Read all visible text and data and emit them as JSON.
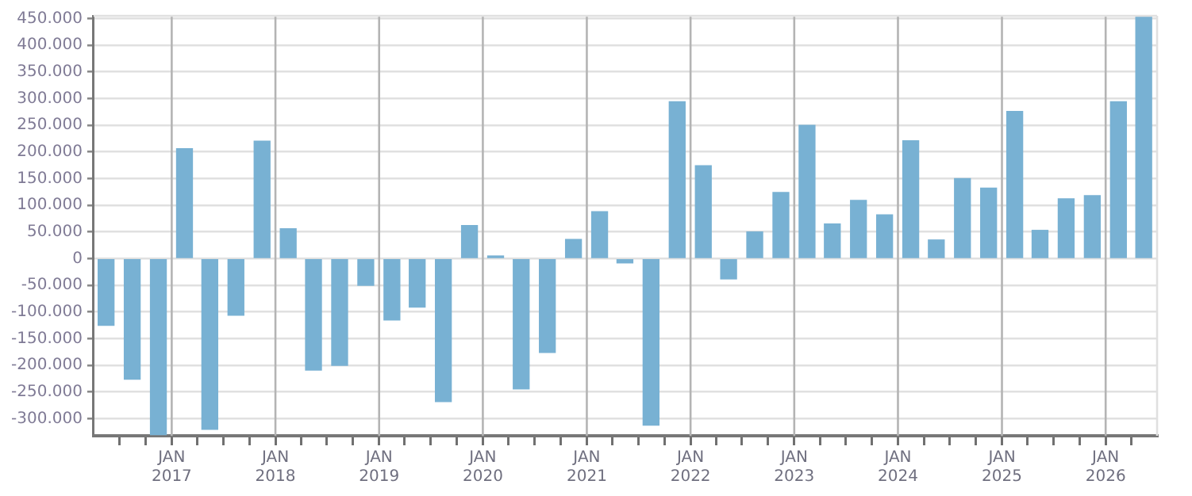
{
  "chart_data": {
    "type": "bar",
    "color": "#78b1d3",
    "grid": true,
    "x": [
      "2016-05-15",
      "2016-08-15",
      "2016-11-15",
      "2017-02-15",
      "2017-05-15",
      "2017-08-15",
      "2017-11-15",
      "2018-02-15",
      "2018-05-15",
      "2018-08-15",
      "2018-11-15",
      "2019-02-15",
      "2019-05-15",
      "2019-08-15",
      "2019-11-15",
      "2020-02-15",
      "2020-05-15",
      "2020-08-15",
      "2020-11-15",
      "2021-02-15",
      "2021-05-15",
      "2021-08-15",
      "2021-11-15",
      "2022-02-15",
      "2022-05-15",
      "2022-08-15",
      "2022-11-15",
      "2023-02-15",
      "2023-05-15",
      "2023-08-15",
      "2023-11-15",
      "2024-02-15",
      "2024-05-15",
      "2024-08-15",
      "2024-11-15",
      "2025-02-15",
      "2025-05-15",
      "2025-08-15",
      "2025-11-15",
      "2026-02-15",
      "2026-05-15"
    ],
    "values": [
      -125000,
      -226000,
      -330000,
      206000,
      -320000,
      -106000,
      220000,
      56000,
      -209000,
      -200000,
      -50000,
      -115000,
      -91000,
      -268000,
      62000,
      5000,
      -244000,
      -176000,
      36000,
      88000,
      -8000,
      -312000,
      294000,
      174000,
      -38000,
      50000,
      124000,
      250000,
      65000,
      109000,
      82000,
      221000,
      35000,
      150000,
      132000,
      276000,
      53000,
      112000,
      118000,
      294000,
      453000
    ],
    "xlim": [
      "2016-04",
      "2026-07"
    ],
    "xticks": [
      {
        "value": "2016-07",
        "label": null
      },
      {
        "value": "2016-10",
        "label": null
      },
      {
        "value": "2017-01",
        "label": "JAN 2017"
      },
      {
        "value": "2017-04",
        "label": null
      },
      {
        "value": "2017-07",
        "label": null
      },
      {
        "value": "2017-10",
        "label": null
      },
      {
        "value": "2018-01",
        "label": "JAN 2018"
      },
      {
        "value": "2018-04",
        "label": null
      },
      {
        "value": "2018-07",
        "label": null
      },
      {
        "value": "2018-10",
        "label": null
      },
      {
        "value": "2019-01",
        "label": "JAN 2019"
      },
      {
        "value": "2019-04",
        "label": null
      },
      {
        "value": "2019-07",
        "label": null
      },
      {
        "value": "2019-10",
        "label": null
      },
      {
        "value": "2020-01",
        "label": "JAN 2020"
      },
      {
        "value": "2020-04",
        "label": null
      },
      {
        "value": "2020-07",
        "label": null
      },
      {
        "value": "2020-10",
        "label": null
      },
      {
        "value": "2021-01",
        "label": "JAN 2021"
      },
      {
        "value": "2021-04",
        "label": null
      },
      {
        "value": "2021-07",
        "label": null
      },
      {
        "value": "2021-10",
        "label": null
      },
      {
        "value": "2022-01",
        "label": "JAN 2022"
      },
      {
        "value": "2022-04",
        "label": null
      },
      {
        "value": "2022-07",
        "label": null
      },
      {
        "value": "2022-10",
        "label": null
      },
      {
        "value": "2023-01",
        "label": "JAN 2023"
      },
      {
        "value": "2023-04",
        "label": null
      },
      {
        "value": "2023-07",
        "label": null
      },
      {
        "value": "2023-10",
        "label": null
      },
      {
        "value": "2024-01",
        "label": "JAN 2024"
      },
      {
        "value": "2024-04",
        "label": null
      },
      {
        "value": "2024-07",
        "label": null
      },
      {
        "value": "2024-10",
        "label": null
      },
      {
        "value": "2025-01",
        "label": "JAN 2025"
      },
      {
        "value": "2025-04",
        "label": null
      },
      {
        "value": "2025-07",
        "label": null
      },
      {
        "value": "2025-10",
        "label": null
      },
      {
        "value": "2026-01",
        "label": "JAN 2026"
      },
      {
        "value": "2026-04",
        "label": null
      }
    ],
    "ylim": [
      -332000,
      455000
    ],
    "yticks": [
      {
        "value": -300000,
        "label": "-300.000"
      },
      {
        "value": -250000,
        "label": "-250.000"
      },
      {
        "value": -200000,
        "label": "-200.000"
      },
      {
        "value": -150000,
        "label": "-150.000"
      },
      {
        "value": -100000,
        "label": "-100.000"
      },
      {
        "value": -50000,
        "label": "-50.000"
      },
      0,
      {
        "value": 50000,
        "label": "50.000"
      },
      {
        "value": 100000,
        "label": "100.000"
      },
      {
        "value": 150000,
        "label": "150.000"
      },
      {
        "value": 200000,
        "label": "200.000"
      },
      {
        "value": 250000,
        "label": "250.000"
      },
      {
        "value": 300000,
        "label": "300.000"
      },
      {
        "value": 350000,
        "label": "350.000"
      },
      {
        "value": 400000,
        "label": "400.000"
      },
      {
        "value": 450000,
        "label": "450.000"
      }
    ]
  }
}
